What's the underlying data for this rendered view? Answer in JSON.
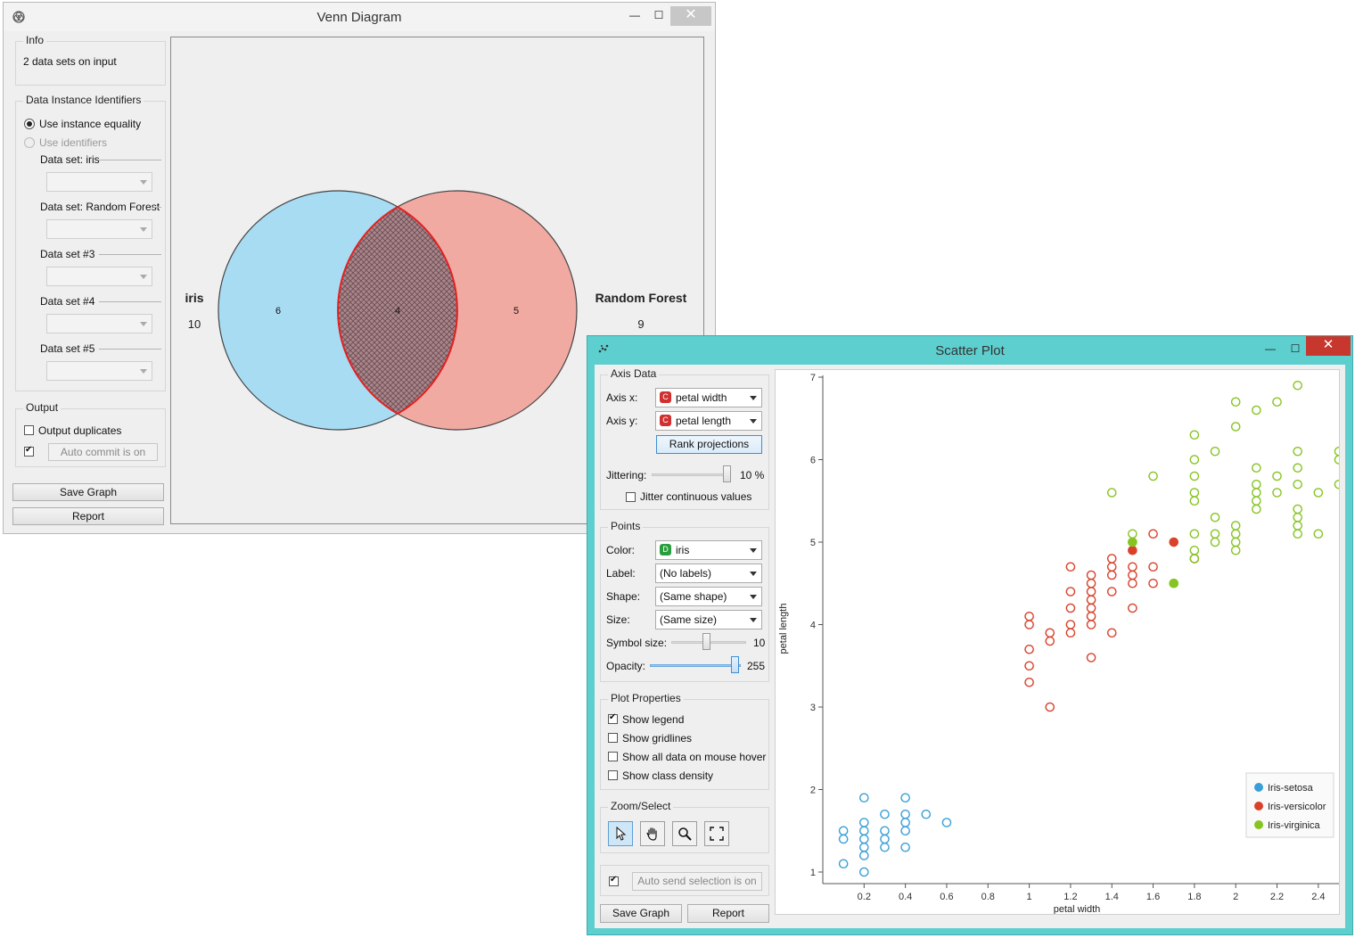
{
  "venn": {
    "title": "Venn Diagram",
    "info": {
      "label": "Info",
      "text": "2 data sets on input"
    },
    "identifiers": {
      "label": "Data Instance Identifiers",
      "use_equality": "Use instance equality",
      "use_identifiers": "Use identifiers",
      "datasets": [
        "Data set: iris",
        "Data set: Random Forest",
        "Data set #3",
        "Data set #4",
        "Data set #5"
      ]
    },
    "output": {
      "label": "Output",
      "duplicates": "Output duplicates",
      "duplicates_checked": false,
      "auto_commit_checked": true,
      "auto_commit": "Auto commit is on"
    },
    "save_graph": "Save Graph",
    "report": "Report",
    "diagram": {
      "left_name": "iris",
      "left_count": "10",
      "right_name": "Random Forest",
      "right_count": "9",
      "left_only": "6",
      "intersection": "4",
      "right_only": "5",
      "left_color": "#a8dcf3",
      "right_color": "#f0aaa2",
      "highlight_color": "#e32020"
    }
  },
  "scatter": {
    "title": "Scatter Plot",
    "axis_data": {
      "label": "Axis Data",
      "axis_x_label": "Axis x:",
      "axis_x_value": "petal width",
      "axis_x_type": "C",
      "axis_y_label": "Axis y:",
      "axis_y_value": "petal length",
      "axis_y_type": "C",
      "rank_projections": "Rank projections",
      "jittering_label": "Jittering:",
      "jittering_value": "10 %",
      "jitter_continuous": "Jitter continuous values",
      "jitter_continuous_checked": false
    },
    "points": {
      "label": "Points",
      "color_label": "Color:",
      "color_value": "iris",
      "color_type": "D",
      "label_label": "Label:",
      "label_value": "(No labels)",
      "shape_label": "Shape:",
      "shape_value": "(Same shape)",
      "size_label": "Size:",
      "size_value": "(Same size)",
      "symbol_size_label": "Symbol size:",
      "symbol_size_value": "10",
      "opacity_label": "Opacity:",
      "opacity_value": "255"
    },
    "plot_properties": {
      "label": "Plot Properties",
      "show_legend": "Show legend",
      "show_legend_checked": true,
      "show_gridlines": "Show gridlines",
      "show_gridlines_checked": false,
      "show_all_data": "Show all data on mouse hover",
      "show_all_data_checked": false,
      "show_class_density": "Show class density",
      "show_class_density_checked": false
    },
    "zoom_select": {
      "label": "Zoom/Select",
      "tools": [
        "select-icon",
        "pan-icon",
        "zoom-icon",
        "reset-zoom-icon"
      ]
    },
    "auto_send_checked": true,
    "auto_send": "Auto send selection is on",
    "save_graph": "Save Graph",
    "report": "Report"
  },
  "chart_data": {
    "type": "scatter",
    "xlabel": "petal width",
    "ylabel": "petal length",
    "xlim": [
      0.0,
      2.5
    ],
    "ylim": [
      0.9,
      7.05
    ],
    "xticks": [
      "0.2",
      "0.4",
      "0.6",
      "0.8",
      "1",
      "1.2",
      "1.4",
      "1.6",
      "1.8",
      "2",
      "2.2",
      "2.4"
    ],
    "yticks": [
      "1",
      "2",
      "3",
      "4",
      "5",
      "6",
      "7"
    ],
    "legend": {
      "position": "bottom-right",
      "entries": [
        "Iris-setosa",
        "Iris-versicolor",
        "Iris-virginica"
      ]
    },
    "series": [
      {
        "name": "Iris-setosa",
        "color": "#3a9fd6",
        "points": [
          [
            0.1,
            1.1
          ],
          [
            0.1,
            1.4
          ],
          [
            0.1,
            1.5
          ],
          [
            0.2,
            1.0
          ],
          [
            0.2,
            1.2
          ],
          [
            0.2,
            1.3
          ],
          [
            0.2,
            1.4
          ],
          [
            0.2,
            1.5
          ],
          [
            0.2,
            1.6
          ],
          [
            0.2,
            1.9
          ],
          [
            0.3,
            1.3
          ],
          [
            0.3,
            1.4
          ],
          [
            0.3,
            1.5
          ],
          [
            0.3,
            1.7
          ],
          [
            0.4,
            1.3
          ],
          [
            0.4,
            1.5
          ],
          [
            0.4,
            1.6
          ],
          [
            0.4,
            1.7
          ],
          [
            0.4,
            1.9
          ],
          [
            0.5,
            1.7
          ],
          [
            0.6,
            1.6
          ]
        ]
      },
      {
        "name": "Iris-versicolor",
        "color": "#d9412b",
        "points": [
          [
            1.0,
            3.3
          ],
          [
            1.0,
            3.5
          ],
          [
            1.0,
            3.7
          ],
          [
            1.0,
            4.0
          ],
          [
            1.0,
            4.1
          ],
          [
            1.1,
            3.0
          ],
          [
            1.1,
            3.8
          ],
          [
            1.1,
            3.9
          ],
          [
            1.2,
            3.9
          ],
          [
            1.2,
            4.0
          ],
          [
            1.2,
            4.2
          ],
          [
            1.2,
            4.4
          ],
          [
            1.2,
            4.7
          ],
          [
            1.3,
            3.6
          ],
          [
            1.3,
            4.0
          ],
          [
            1.3,
            4.1
          ],
          [
            1.3,
            4.2
          ],
          [
            1.3,
            4.3
          ],
          [
            1.3,
            4.4
          ],
          [
            1.3,
            4.5
          ],
          [
            1.3,
            4.6
          ],
          [
            1.4,
            3.9
          ],
          [
            1.4,
            4.4
          ],
          [
            1.4,
            4.6
          ],
          [
            1.4,
            4.7
          ],
          [
            1.4,
            4.8
          ],
          [
            1.5,
            4.2
          ],
          [
            1.5,
            4.5
          ],
          [
            1.5,
            4.6
          ],
          [
            1.5,
            4.7
          ],
          [
            1.6,
            4.5
          ],
          [
            1.6,
            4.7
          ],
          [
            1.6,
            5.1
          ],
          [
            1.8,
            4.8
          ]
        ]
      },
      {
        "name": "Iris-virginica",
        "color": "#86c422",
        "points": [
          [
            1.4,
            5.6
          ],
          [
            1.5,
            5.0
          ],
          [
            1.5,
            5.1
          ],
          [
            1.6,
            5.8
          ],
          [
            1.7,
            4.5
          ],
          [
            1.8,
            4.8
          ],
          [
            1.8,
            4.9
          ],
          [
            1.8,
            5.1
          ],
          [
            1.8,
            5.5
          ],
          [
            1.8,
            5.6
          ],
          [
            1.8,
            5.8
          ],
          [
            1.8,
            6.0
          ],
          [
            1.8,
            6.3
          ],
          [
            1.9,
            5.0
          ],
          [
            1.9,
            5.1
          ],
          [
            1.9,
            5.3
          ],
          [
            1.9,
            6.1
          ],
          [
            2.0,
            4.9
          ],
          [
            2.0,
            5.0
          ],
          [
            2.0,
            5.1
          ],
          [
            2.0,
            5.2
          ],
          [
            2.0,
            6.4
          ],
          [
            2.0,
            6.7
          ],
          [
            2.1,
            5.4
          ],
          [
            2.1,
            5.5
          ],
          [
            2.1,
            5.6
          ],
          [
            2.1,
            5.7
          ],
          [
            2.1,
            5.9
          ],
          [
            2.1,
            6.6
          ],
          [
            2.2,
            5.6
          ],
          [
            2.2,
            5.8
          ],
          [
            2.2,
            6.7
          ],
          [
            2.3,
            5.1
          ],
          [
            2.3,
            5.2
          ],
          [
            2.3,
            5.3
          ],
          [
            2.3,
            5.4
          ],
          [
            2.3,
            5.7
          ],
          [
            2.3,
            5.9
          ],
          [
            2.3,
            6.1
          ],
          [
            2.3,
            6.9
          ],
          [
            2.4,
            5.1
          ],
          [
            2.4,
            5.6
          ],
          [
            2.5,
            5.7
          ],
          [
            2.5,
            6.0
          ],
          [
            2.5,
            6.1
          ]
        ]
      }
    ],
    "selected": [
      {
        "series": "Iris-versicolor",
        "x": 1.5,
        "y": 4.9
      },
      {
        "series": "Iris-versicolor",
        "x": 1.7,
        "y": 5.0
      },
      {
        "series": "Iris-virginica",
        "x": 1.5,
        "y": 5.0
      },
      {
        "series": "Iris-virginica",
        "x": 1.7,
        "y": 4.5
      }
    ]
  }
}
